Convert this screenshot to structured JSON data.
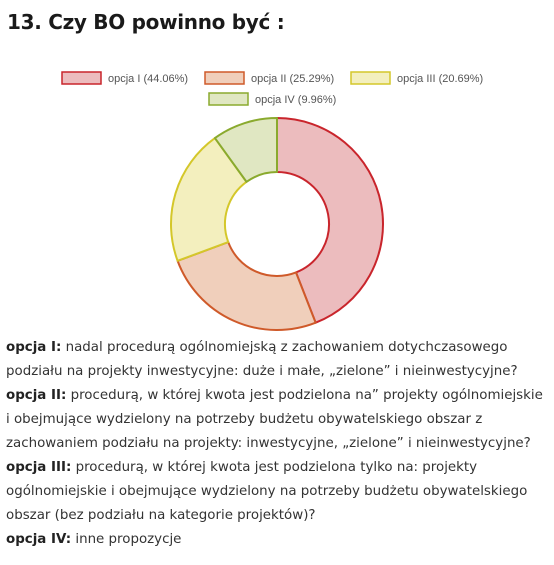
{
  "heading": "13. Czy BO powinno być :",
  "chart_data": {
    "type": "pie",
    "variant": "donut",
    "categories": [
      "opcja I",
      "opcja II",
      "opcja III",
      "opcja IV"
    ],
    "values": [
      44.06,
      25.29,
      20.69,
      9.96
    ],
    "legend": [
      "opcja I (44.06%)",
      "opcja II (25.29%)",
      "opcja III (20.69%)",
      "opcja IV (9.96%)"
    ],
    "legend_position": "top",
    "colors": {
      "fill": [
        "#ecbcbe",
        "#f0cfbb",
        "#f3efbe",
        "#e0e7c2"
      ],
      "stroke": [
        "#c9252c",
        "#cf5a2a",
        "#d4c72a",
        "#8aaa2e"
      ]
    }
  },
  "descriptions": [
    {
      "label": "opcja I:",
      "text": " nadal procedurą ogólnomiejską z zachowaniem dotychczasowego podziału na projekty inwestycyjne: duże i małe, „zielone” i nieinwestycyjne?"
    },
    {
      "label": "opcja II:",
      "text": " procedurą, w której kwota jest podzielona na” projekty ogólnomiejskie  i obejmujące wydzielony na potrzeby budżetu obywatelskiego obszar z zachowaniem podziału na projekty: inwestycyjne, „zielone” i nieinwestycyjne?"
    },
    {
      "label": "opcja III:",
      "text": " procedurą, w której kwota jest podzielona tylko na: projekty ogólnomiejskie i obejmujące wydzielony na potrzeby budżetu obywatelskiego obszar (bez podziału na kategorie projektów)?"
    },
    {
      "label": "opcja IV:",
      "text": " inne propozycje"
    }
  ]
}
